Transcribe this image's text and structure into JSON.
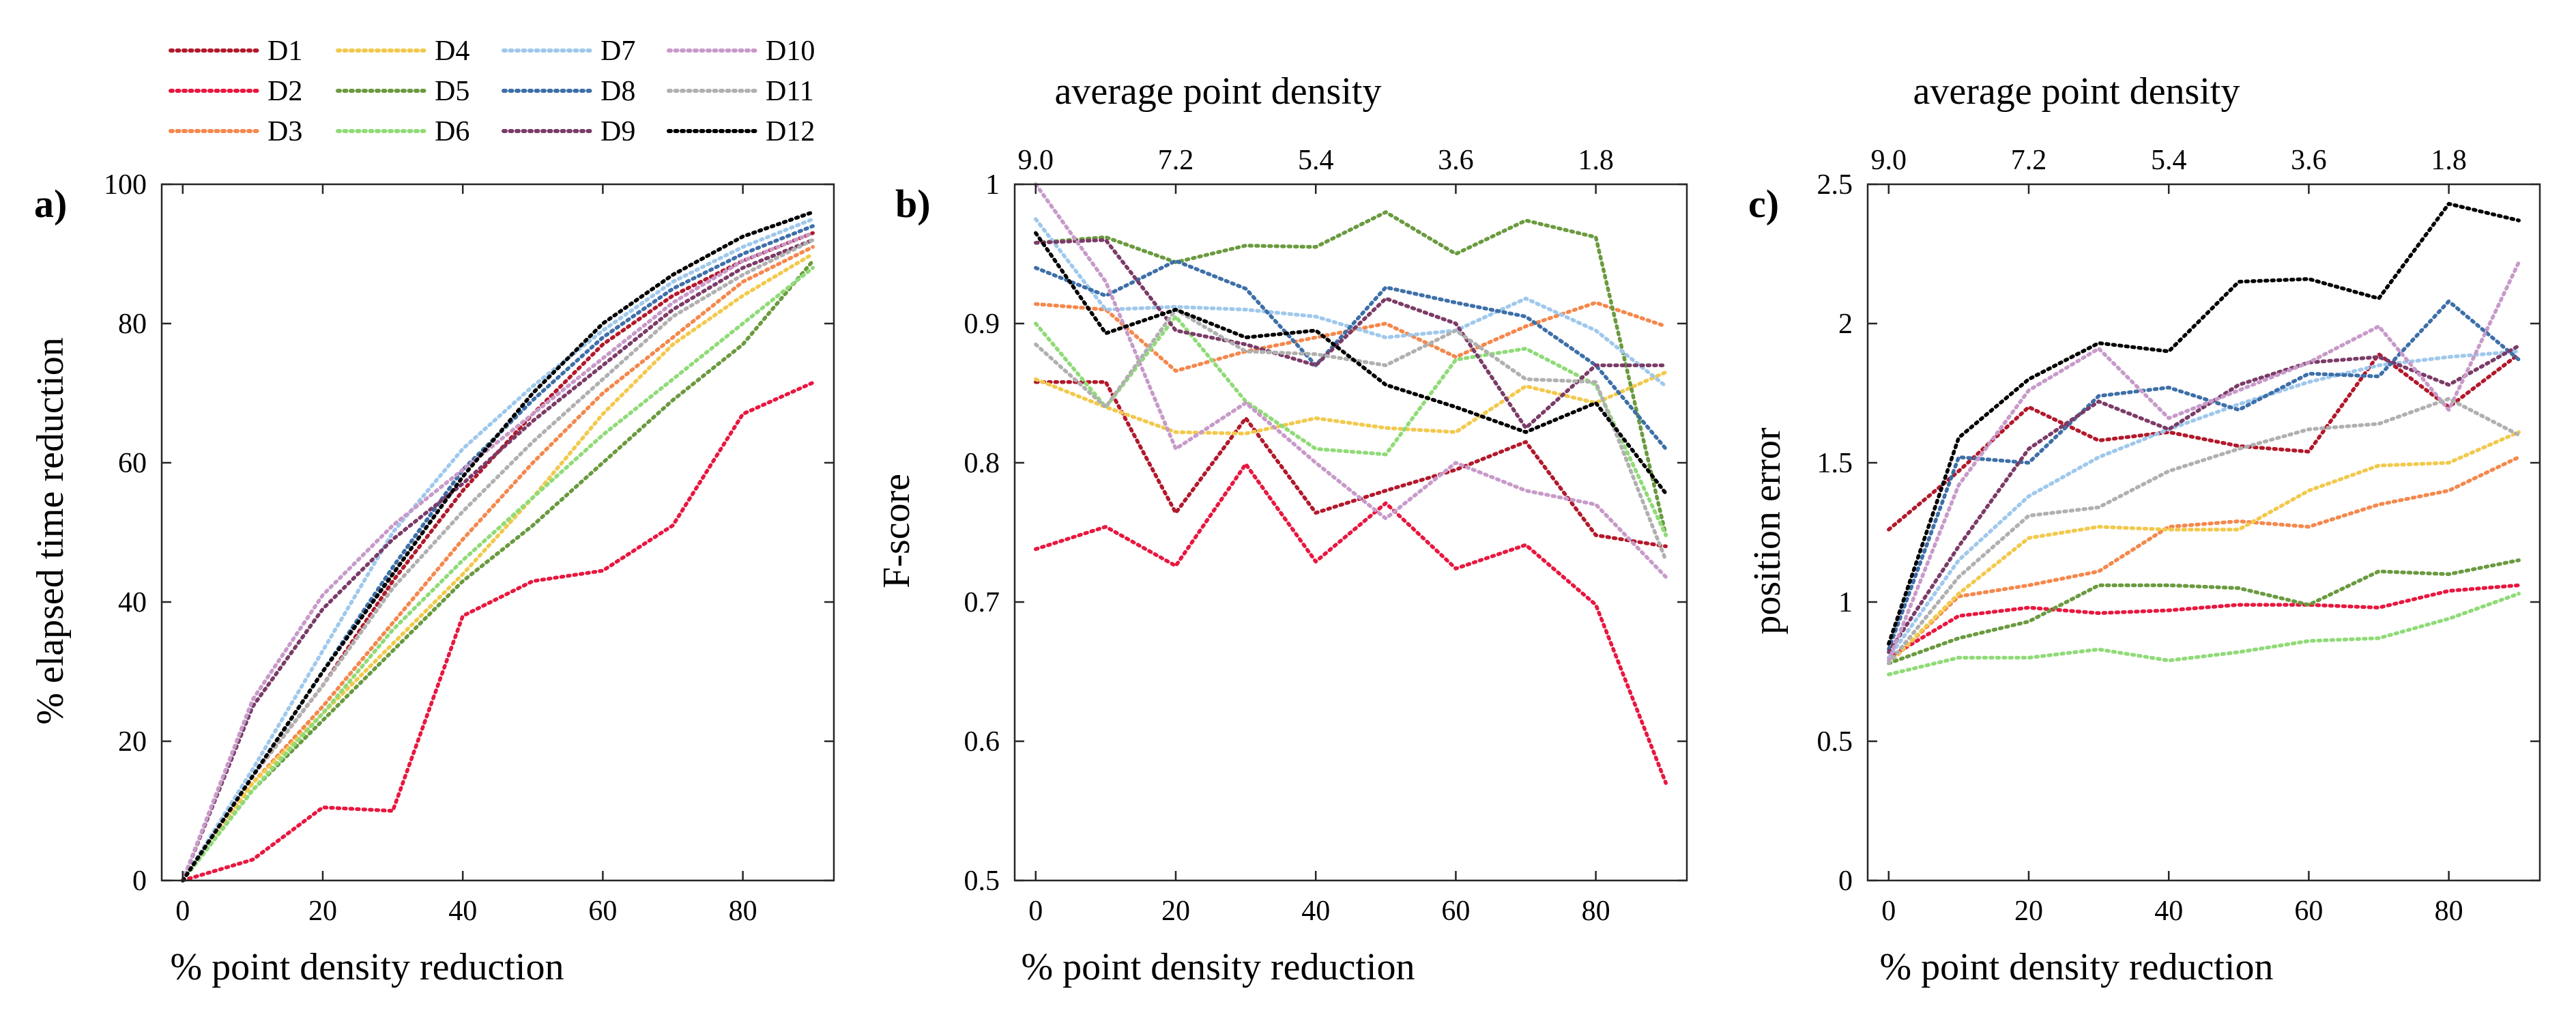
{
  "series_colors": {
    "D1": "#b2182b",
    "D2": "#e8173f",
    "D3": "#f4884d",
    "D4": "#f2c94c",
    "D5": "#6a9a3f",
    "D6": "#8fdb77",
    "D7": "#9fc8ec",
    "D8": "#3d6fa8",
    "D9": "#7b3b67",
    "D10": "#c79ac9",
    "D11": "#b0b0b0",
    "D12": "#000000"
  },
  "legend": {
    "entries": [
      "D1",
      "D2",
      "D3",
      "D4",
      "D5",
      "D6",
      "D7",
      "D8",
      "D9",
      "D10",
      "D11",
      "D12"
    ]
  },
  "chart_data": [
    {
      "panel": "a)",
      "type": "line",
      "xlabel": "% point density reduction",
      "ylabel": "% elapsed time reduction",
      "top_xlabel": "",
      "xlim": [
        -3,
        93
      ],
      "ylim": [
        0,
        100
      ],
      "xticks": [
        0,
        20,
        40,
        60,
        80
      ],
      "yticks": [
        0,
        20,
        40,
        60,
        80,
        100
      ],
      "ytick_labels": [
        "0",
        "20",
        "40",
        "60",
        "80",
        "100"
      ],
      "top_ticks": [],
      "top_tick_labels": [],
      "x": [
        0,
        10,
        20,
        30,
        40,
        50,
        60,
        70,
        80,
        90
      ],
      "series": [
        {
          "name": "D1",
          "values": [
            0,
            15,
            28,
            43,
            56,
            67,
            77,
            84,
            89,
            93
          ]
        },
        {
          "name": "D2",
          "values": [
            0,
            3,
            10.5,
            10,
            38,
            43,
            44.5,
            51,
            67,
            71.5
          ]
        },
        {
          "name": "D3",
          "values": [
            0,
            14,
            25,
            37,
            49,
            60,
            70,
            78,
            86,
            91
          ]
        },
        {
          "name": "D4",
          "values": [
            0,
            14,
            24,
            34,
            44,
            55,
            67,
            77,
            84,
            90
          ]
        },
        {
          "name": "D5",
          "values": [
            0,
            13,
            23,
            33,
            43,
            51,
            60,
            69,
            77,
            89
          ]
        },
        {
          "name": "D6",
          "values": [
            0,
            13,
            24,
            36,
            46,
            55,
            64,
            72,
            80,
            88
          ]
        },
        {
          "name": "D7",
          "values": [
            0,
            16,
            33,
            50,
            62,
            71,
            79,
            86,
            91,
            95
          ]
        },
        {
          "name": "D8",
          "values": [
            0,
            15,
            30,
            45,
            59,
            69,
            78,
            85,
            90,
            94
          ]
        },
        {
          "name": "D9",
          "values": [
            0,
            25,
            39,
            49,
            57,
            66,
            74,
            82,
            88,
            92
          ]
        },
        {
          "name": "D10",
          "values": [
            0,
            26,
            41,
            51,
            59,
            67,
            75,
            83,
            89,
            93
          ]
        },
        {
          "name": "D11",
          "values": [
            0,
            15,
            28,
            42,
            53,
            63,
            72,
            81,
            87,
            92
          ]
        },
        {
          "name": "D12",
          "values": [
            0,
            15,
            30,
            44,
            58,
            70,
            80,
            87,
            92.5,
            96
          ]
        }
      ]
    },
    {
      "panel": "b)",
      "type": "line",
      "xlabel": "% point density reduction",
      "ylabel": "F-score",
      "top_xlabel": "average point density",
      "xlim": [
        -3,
        93
      ],
      "ylim": [
        0.5,
        1
      ],
      "xticks": [
        0,
        20,
        40,
        60,
        80
      ],
      "yticks": [
        0.5,
        0.6,
        0.7,
        0.8,
        0.9,
        1.0
      ],
      "ytick_labels": [
        "0.5",
        "0.6",
        "0.7",
        "0.8",
        "0.9",
        "1"
      ],
      "top_ticks": [
        0,
        20,
        40,
        60,
        80
      ],
      "top_tick_labels": [
        "9.0",
        "7.2",
        "5.4",
        "3.6",
        "1.8"
      ],
      "x": [
        0,
        10,
        20,
        30,
        40,
        50,
        60,
        70,
        80,
        90
      ],
      "series": [
        {
          "name": "D1",
          "values": [
            0.858,
            0.858,
            0.764,
            0.832,
            0.764,
            0.78,
            0.795,
            0.815,
            0.748,
            0.74
          ]
        },
        {
          "name": "D2",
          "values": [
            0.738,
            0.754,
            0.726,
            0.799,
            0.729,
            0.771,
            0.724,
            0.741,
            0.698,
            0.57
          ]
        },
        {
          "name": "D3",
          "values": [
            0.914,
            0.91,
            0.866,
            0.88,
            0.89,
            0.9,
            0.876,
            0.898,
            0.915,
            0.898
          ]
        },
        {
          "name": "D4",
          "values": [
            0.86,
            0.84,
            0.822,
            0.821,
            0.832,
            0.825,
            0.822,
            0.855,
            0.843,
            0.865
          ]
        },
        {
          "name": "D5",
          "values": [
            0.958,
            0.962,
            0.944,
            0.956,
            0.955,
            0.98,
            0.95,
            0.974,
            0.962,
            0.748
          ]
        },
        {
          "name": "D6",
          "values": [
            0.9,
            0.84,
            0.905,
            0.844,
            0.81,
            0.806,
            0.874,
            0.882,
            0.856,
            0.748
          ]
        },
        {
          "name": "D7",
          "values": [
            0.975,
            0.91,
            0.912,
            0.91,
            0.905,
            0.89,
            0.895,
            0.918,
            0.895,
            0.855
          ]
        },
        {
          "name": "D8",
          "values": [
            0.94,
            0.92,
            0.945,
            0.925,
            0.87,
            0.926,
            0.915,
            0.905,
            0.87,
            0.81
          ]
        },
        {
          "name": "D9",
          "values": [
            0.958,
            0.96,
            0.895,
            0.885,
            0.87,
            0.918,
            0.9,
            0.825,
            0.87,
            0.87
          ]
        },
        {
          "name": "D10",
          "values": [
            1.0,
            0.93,
            0.81,
            0.843,
            0.8,
            0.76,
            0.8,
            0.78,
            0.77,
            0.718
          ]
        },
        {
          "name": "D11",
          "values": [
            0.885,
            0.84,
            0.91,
            0.88,
            0.878,
            0.87,
            0.895,
            0.86,
            0.858,
            0.73
          ]
        },
        {
          "name": "D12",
          "values": [
            0.965,
            0.893,
            0.91,
            0.89,
            0.895,
            0.856,
            0.84,
            0.822,
            0.843,
            0.778
          ]
        }
      ]
    },
    {
      "panel": "c)",
      "type": "line",
      "xlabel": "% point density reduction",
      "ylabel": "position error",
      "top_xlabel": "average point density",
      "xlim": [
        -3,
        93
      ],
      "ylim": [
        0,
        2.5
      ],
      "xticks": [
        0,
        20,
        40,
        60,
        80
      ],
      "yticks": [
        0,
        0.5,
        1,
        1.5,
        2,
        2.5
      ],
      "ytick_labels": [
        "0",
        "0.5",
        "1",
        "1.5",
        "2",
        "2.5"
      ],
      "top_ticks": [
        0,
        20,
        40,
        60,
        80
      ],
      "top_tick_labels": [
        "9.0",
        "7.2",
        "5.4",
        "3.6",
        "1.8"
      ],
      "x": [
        0,
        10,
        20,
        30,
        40,
        50,
        60,
        70,
        80,
        90
      ],
      "series": [
        {
          "name": "D1",
          "values": [
            1.26,
            1.47,
            1.7,
            1.58,
            1.61,
            1.56,
            1.54,
            1.89,
            1.7,
            1.89
          ]
        },
        {
          "name": "D2",
          "values": [
            0.8,
            0.95,
            0.98,
            0.96,
            0.97,
            0.99,
            0.99,
            0.98,
            1.04,
            1.06
          ]
        },
        {
          "name": "D3",
          "values": [
            0.78,
            1.02,
            1.06,
            1.11,
            1.27,
            1.29,
            1.27,
            1.35,
            1.4,
            1.52
          ]
        },
        {
          "name": "D4",
          "values": [
            0.78,
            1.03,
            1.23,
            1.27,
            1.26,
            1.26,
            1.4,
            1.49,
            1.5,
            1.61
          ]
        },
        {
          "name": "D5",
          "values": [
            0.78,
            0.87,
            0.93,
            1.06,
            1.06,
            1.05,
            0.99,
            1.11,
            1.1,
            1.15
          ]
        },
        {
          "name": "D6",
          "values": [
            0.74,
            0.8,
            0.8,
            0.83,
            0.79,
            0.82,
            0.86,
            0.87,
            0.94,
            1.03
          ]
        },
        {
          "name": "D7",
          "values": [
            0.8,
            1.15,
            1.38,
            1.52,
            1.62,
            1.71,
            1.79,
            1.85,
            1.88,
            1.9
          ]
        },
        {
          "name": "D8",
          "values": [
            0.83,
            1.52,
            1.5,
            1.74,
            1.77,
            1.69,
            1.82,
            1.81,
            2.08,
            1.87
          ]
        },
        {
          "name": "D9",
          "values": [
            0.82,
            1.2,
            1.55,
            1.72,
            1.62,
            1.78,
            1.86,
            1.88,
            1.78,
            1.92
          ]
        },
        {
          "name": "D10",
          "values": [
            0.79,
            1.42,
            1.76,
            1.91,
            1.66,
            1.76,
            1.86,
            1.99,
            1.69,
            2.22
          ]
        },
        {
          "name": "D11",
          "values": [
            0.78,
            1.09,
            1.31,
            1.34,
            1.47,
            1.55,
            1.62,
            1.64,
            1.73,
            1.6
          ]
        },
        {
          "name": "D12",
          "values": [
            0.85,
            1.59,
            1.8,
            1.93,
            1.9,
            2.15,
            2.16,
            2.09,
            2.43,
            2.37
          ]
        }
      ]
    }
  ]
}
